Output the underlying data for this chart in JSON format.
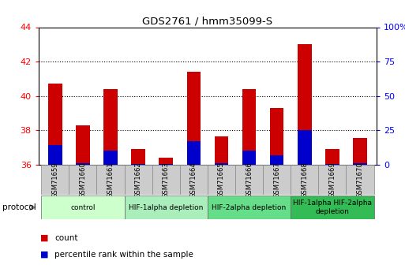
{
  "title": "GDS2761 / hmm35099-S",
  "samples": [
    "GSM71659",
    "GSM71660",
    "GSM71661",
    "GSM71662",
    "GSM71663",
    "GSM71664",
    "GSM71665",
    "GSM71666",
    "GSM71667",
    "GSM71668",
    "GSM71669",
    "GSM71670"
  ],
  "count_values": [
    40.7,
    38.3,
    40.4,
    36.9,
    36.4,
    41.4,
    37.65,
    40.4,
    39.3,
    43.0,
    36.9,
    37.55
  ],
  "percentile_values": [
    37.15,
    36.1,
    36.8,
    36.05,
    36.05,
    37.35,
    36.1,
    36.8,
    36.55,
    38.0,
    36.05,
    36.1
  ],
  "bar_base": 36.0,
  "ylim_left": [
    36,
    44
  ],
  "ylim_right": [
    0,
    100
  ],
  "yticks_left": [
    36,
    38,
    40,
    42,
    44
  ],
  "yticks_right": [
    0,
    25,
    50,
    75,
    100
  ],
  "protocol_groups": [
    {
      "label": "control",
      "start": 0,
      "end": 3,
      "color": "#ccffcc"
    },
    {
      "label": "HIF-1alpha depletion",
      "start": 3,
      "end": 6,
      "color": "#aaeebb"
    },
    {
      "label": "HIF-2alpha depletion",
      "start": 6,
      "end": 9,
      "color": "#66dd88"
    },
    {
      "label": "HIF-1alpha HIF-2alpha\ndepletion",
      "start": 9,
      "end": 12,
      "color": "#33bb55"
    }
  ],
  "count_color": "#cc0000",
  "percentile_color": "#0000cc",
  "bar_width": 0.5,
  "plot_bg": "#ffffff",
  "grid_dotted_ticks": [
    38,
    40,
    42
  ],
  "label_box_color": "#cccccc",
  "label_box_edge": "#888888"
}
